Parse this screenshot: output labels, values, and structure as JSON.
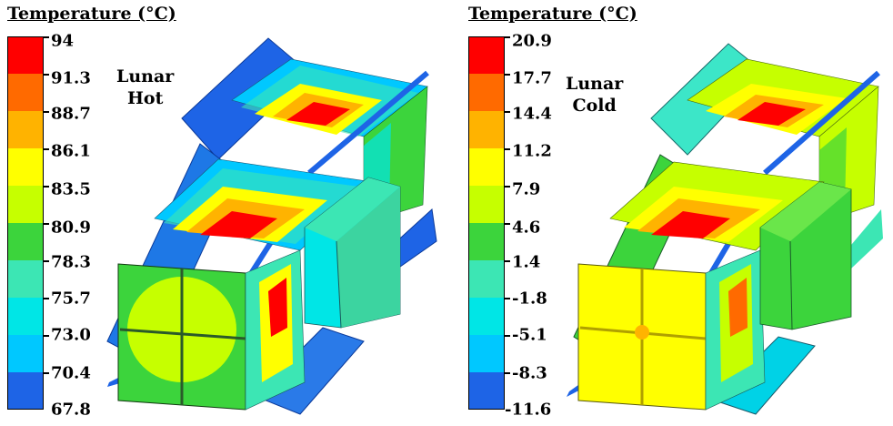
{
  "panels": [
    {
      "id": "hot",
      "legend_title": "Temperature (°C)",
      "case_label_line1": "Lunar",
      "case_label_line2": "Hot",
      "tick_labels": [
        "94",
        "91.3",
        "88.7",
        "86.1",
        "83.5",
        "80.9",
        "78.3",
        "75.7",
        "73.0",
        "70.4",
        "67.8"
      ]
    },
    {
      "id": "cold",
      "legend_title": "Temperature (°C)",
      "case_label_line1": "Lunar",
      "case_label_line2": "Cold",
      "tick_labels": [
        "20.9",
        "17.7",
        "14.4",
        "11.2",
        "7.9",
        "4.6",
        "1.4",
        "-1.8",
        "-5.1",
        "-8.3",
        "-11.6"
      ]
    }
  ],
  "colors": {
    "scale": [
      "#ff0000",
      "#ff6a00",
      "#ffb300",
      "#ffff00",
      "#c6ff00",
      "#3cd43c",
      "#3ce6b4",
      "#00e6e6",
      "#00c8ff",
      "#1e64e6"
    ],
    "outline": "#000000"
  }
}
